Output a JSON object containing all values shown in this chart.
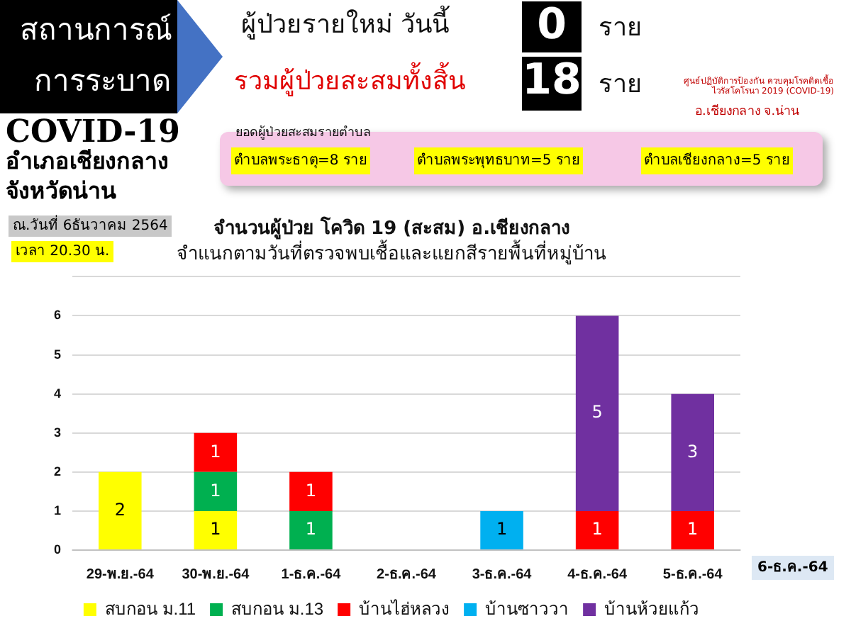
{
  "chart_data": {
    "type": "bar",
    "stacked": true,
    "title": "จำนวนผู้ป่วย โควิด 19 (สะสม) อ.เชียงกลาง",
    "subtitle": "จำแนกตามวันที่ตรวจพบเชื้อและแยกสีรายพื้นที่หมู่บ้าน",
    "categories": [
      "29-พ.ย.-64",
      "30-พ.ย.-64",
      "1-ธ.ค.-64",
      "2-ธ.ค.-64",
      "3-ธ.ค.-64",
      "4-ธ.ค.-64",
      "5-ธ.ค.-64"
    ],
    "series": [
      {
        "name": "สบกอน ม.11",
        "color": "#ffff00",
        "values": [
          2,
          1,
          null,
          null,
          null,
          null,
          null
        ]
      },
      {
        "name": "สบกอน ม.13",
        "color": "#00b050",
        "values": [
          null,
          1,
          1,
          null,
          null,
          null,
          null
        ]
      },
      {
        "name": "บ้านไฮ่หลวง",
        "color": "#ff0000",
        "values": [
          null,
          1,
          1,
          null,
          null,
          1,
          1
        ]
      },
      {
        "name": "บ้านซาววา",
        "color": "#00b0f0",
        "values": [
          null,
          null,
          null,
          null,
          1,
          null,
          null
        ]
      },
      {
        "name": "บ้านห้วยแก้ว",
        "color": "#7030a0",
        "values": [
          null,
          null,
          null,
          null,
          null,
          5,
          3
        ]
      }
    ],
    "ylim": [
      0,
      7
    ],
    "yticks": [
      0,
      1,
      2,
      3,
      4,
      5,
      6,
      {
        "value": 7,
        "label": null
      }
    ],
    "grid": "y",
    "legend": "bottom",
    "data_labels": true,
    "annotations": [
      "สถานการณ์",
      "การระบาด",
      "ผู้ป่วยรายใหม่ วันนี้",
      "0",
      "ราย",
      "รวมผู้ป่วยสะสมทั้งสิ้น",
      "18",
      "ราย",
      "ศูนย์ปฏิบัติการป้องกัน ควบคุมโรคติดเชื้อไวรัสโคโรนา 2019 (COVID-19)",
      "อ.เชียงกลาง จ.น่าน",
      "COVID-19",
      "อำเภอเชียงกลาง",
      "จังหวัดน่าน",
      "ยอดผู้ป่วยสะสมรายตำบล",
      "ตำบลพระธาตุ=8 ราย",
      "ตำบลพระพุทธบาท=5 ราย",
      "ตำบลเชียงกลาง=5 ราย",
      "ณ.วันที่ 6ธันวาคม 2564",
      "เวลา 20.30 น.",
      "6-ธ.ค.-64"
    ]
  }
}
